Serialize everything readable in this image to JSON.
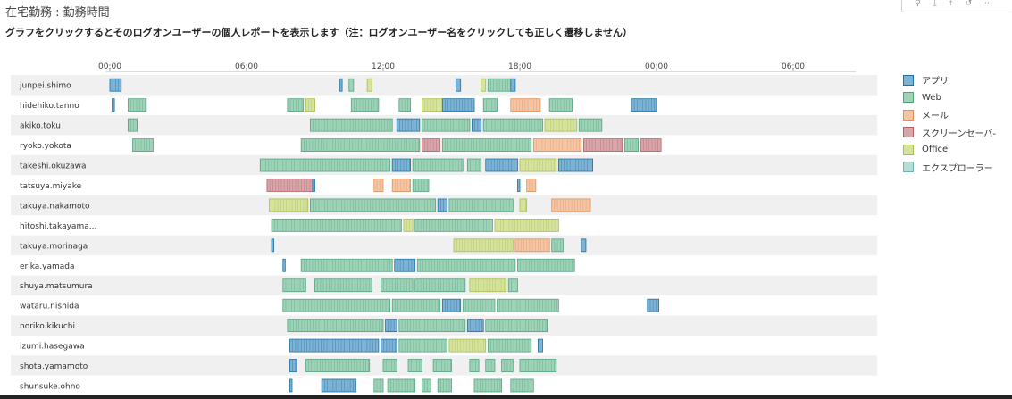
{
  "page": {
    "title": "在宅勤務 : 勤務時間",
    "subtitle": "グラフをクリックするとそのログオンユーザーの個人レポートを表示します（注：ログオンユーザー名をクリックしても正しく遷移しません）"
  },
  "toolbar": {
    "icons": [
      "search-icon",
      "download-icon",
      "pin-icon",
      "undo-icon",
      "share-icon"
    ],
    "glyphs": [
      "⚲",
      "⤓",
      "⤒",
      "↺",
      "⋯"
    ]
  },
  "colors": {
    "アプリ": {
      "fill": "#7fb3d5",
      "stroke": "#1f6f9f"
    },
    "Web": {
      "fill": "#9fd3b8",
      "stroke": "#52a27e"
    },
    "メール": {
      "fill": "#f4c6a6",
      "stroke": "#e08f56"
    },
    "スクリーンセーバー": {
      "fill": "#d7a6aa",
      "stroke": "#b36168"
    },
    "Office": {
      "fill": "#d5e39f",
      "stroke": "#a6bd4d"
    },
    "エクスプローラー": {
      "fill": "#b4ddd7",
      "stroke": "#6fb3aa"
    }
  },
  "chart_data": {
    "type": "timeline",
    "x_ticks": [
      "00:00",
      "06:00",
      "12:00",
      "18:00",
      "00:00",
      "06:00"
    ],
    "x_range_hours": [
      -0.3,
      33.0
    ],
    "legend": {
      "position": "right",
      "entries": [
        "アプリ",
        "Web",
        "メール",
        "スクリーンセーバ-",
        "Office",
        "エクスプローラー"
      ],
      "keys": [
        "アプリ",
        "Web",
        "メール",
        "スクリーンセーバー",
        "Office",
        "エクスプローラー"
      ]
    },
    "users": [
      {
        "name": "junpei.shimo",
        "segments": [
          {
            "s": 0.0,
            "e": 0.5,
            "t": "アプリ"
          },
          {
            "s": 10.1,
            "e": 10.2,
            "t": "アプリ"
          },
          {
            "s": 10.5,
            "e": 10.7,
            "t": "Web"
          },
          {
            "s": 11.3,
            "e": 11.5,
            "t": "Office"
          },
          {
            "s": 15.2,
            "e": 15.4,
            "t": "アプリ"
          },
          {
            "s": 16.3,
            "e": 16.5,
            "t": "Office"
          },
          {
            "s": 16.6,
            "e": 17.6,
            "t": "Web"
          },
          {
            "s": 17.6,
            "e": 17.8,
            "t": "アプリ"
          }
        ]
      },
      {
        "name": "hidehiko.tanno",
        "segments": [
          {
            "s": 0.1,
            "e": 0.2,
            "t": "アプリ"
          },
          {
            "s": 0.8,
            "e": 1.6,
            "t": "Web"
          },
          {
            "s": 7.8,
            "e": 8.5,
            "t": "Web"
          },
          {
            "s": 8.6,
            "e": 9.0,
            "t": "Office"
          },
          {
            "s": 10.6,
            "e": 11.8,
            "t": "Web"
          },
          {
            "s": 12.7,
            "e": 13.2,
            "t": "Web"
          },
          {
            "s": 13.7,
            "e": 14.6,
            "t": "Office"
          },
          {
            "s": 14.6,
            "e": 16.0,
            "t": "アプリ"
          },
          {
            "s": 16.4,
            "e": 17.0,
            "t": "Web"
          },
          {
            "s": 17.6,
            "e": 18.9,
            "t": "メール"
          },
          {
            "s": 19.3,
            "e": 20.3,
            "t": "Web"
          },
          {
            "s": 22.9,
            "e": 24.0,
            "t": "アプリ"
          }
        ]
      },
      {
        "name": "akiko.toku",
        "segments": [
          {
            "s": 0.8,
            "e": 1.2,
            "t": "Web"
          },
          {
            "s": 8.8,
            "e": 12.4,
            "t": "Web"
          },
          {
            "s": 12.6,
            "e": 13.6,
            "t": "アプリ"
          },
          {
            "s": 13.7,
            "e": 15.8,
            "t": "Web"
          },
          {
            "s": 15.9,
            "e": 16.3,
            "t": "アプリ"
          },
          {
            "s": 16.4,
            "e": 19.0,
            "t": "Web"
          },
          {
            "s": 19.1,
            "e": 20.5,
            "t": "Office"
          },
          {
            "s": 20.6,
            "e": 21.6,
            "t": "Web"
          }
        ]
      },
      {
        "name": "ryoko.yokota",
        "segments": [
          {
            "s": 1.0,
            "e": 1.9,
            "t": "Web"
          },
          {
            "s": 8.4,
            "e": 13.6,
            "t": "Web"
          },
          {
            "s": 13.7,
            "e": 14.5,
            "t": "スクリーンセーバー"
          },
          {
            "s": 14.6,
            "e": 18.5,
            "t": "Web"
          },
          {
            "s": 18.6,
            "e": 20.7,
            "t": "メール"
          },
          {
            "s": 20.8,
            "e": 22.5,
            "t": "スクリーンセーバー"
          },
          {
            "s": 22.6,
            "e": 23.2,
            "t": "Web"
          },
          {
            "s": 23.3,
            "e": 24.2,
            "t": "スクリーンセーバー"
          }
        ]
      },
      {
        "name": "takeshi.okuzawa",
        "segments": [
          {
            "s": 6.6,
            "e": 12.3,
            "t": "Web"
          },
          {
            "s": 12.4,
            "e": 13.2,
            "t": "アプリ"
          },
          {
            "s": 13.3,
            "e": 15.5,
            "t": "Web"
          },
          {
            "s": 15.7,
            "e": 16.3,
            "t": "Web"
          },
          {
            "s": 16.5,
            "e": 17.9,
            "t": "アプリ"
          },
          {
            "s": 18.0,
            "e": 19.6,
            "t": "Office"
          },
          {
            "s": 19.7,
            "e": 21.2,
            "t": "アプリ"
          }
        ]
      },
      {
        "name": "tatsuya.miyake",
        "segments": [
          {
            "s": 6.9,
            "e": 8.9,
            "t": "スクリーンセーバー"
          },
          {
            "s": 8.9,
            "e": 9.0,
            "t": "アプリ"
          },
          {
            "s": 11.6,
            "e": 12.0,
            "t": "メール"
          },
          {
            "s": 12.4,
            "e": 13.2,
            "t": "メール"
          },
          {
            "s": 13.3,
            "e": 14.0,
            "t": "Web"
          },
          {
            "s": 17.9,
            "e": 18.0,
            "t": "アプリ"
          },
          {
            "s": 18.3,
            "e": 18.7,
            "t": "メール"
          }
        ]
      },
      {
        "name": "takuya.nakamoto",
        "segments": [
          {
            "s": 7.0,
            "e": 8.7,
            "t": "Office"
          },
          {
            "s": 8.8,
            "e": 14.3,
            "t": "Web"
          },
          {
            "s": 14.4,
            "e": 14.8,
            "t": "アプリ"
          },
          {
            "s": 14.9,
            "e": 17.7,
            "t": "Web"
          },
          {
            "s": 18.0,
            "e": 18.3,
            "t": "Office"
          },
          {
            "s": 19.4,
            "e": 21.1,
            "t": "メール"
          }
        ]
      },
      {
        "name": "hitoshi.takayama...",
        "segments": [
          {
            "s": 7.1,
            "e": 12.8,
            "t": "Web"
          },
          {
            "s": 12.9,
            "e": 13.3,
            "t": "Office"
          },
          {
            "s": 13.4,
            "e": 16.8,
            "t": "Web"
          },
          {
            "s": 16.9,
            "e": 19.7,
            "t": "Office"
          }
        ]
      },
      {
        "name": "takuya.morinaga",
        "segments": [
          {
            "s": 7.1,
            "e": 7.2,
            "t": "アプリ"
          },
          {
            "s": 15.1,
            "e": 17.7,
            "t": "Office"
          },
          {
            "s": 17.8,
            "e": 19.3,
            "t": "メール"
          },
          {
            "s": 19.4,
            "e": 19.9,
            "t": "Web"
          },
          {
            "s": 20.7,
            "e": 20.9,
            "t": "アプリ"
          }
        ]
      },
      {
        "name": "erika.yamada",
        "segments": [
          {
            "s": 7.6,
            "e": 7.7,
            "t": "アプリ"
          },
          {
            "s": 8.4,
            "e": 12.4,
            "t": "Web"
          },
          {
            "s": 12.5,
            "e": 13.4,
            "t": "アプリ"
          },
          {
            "s": 13.5,
            "e": 17.8,
            "t": "Web"
          },
          {
            "s": 17.9,
            "e": 20.4,
            "t": "Web"
          }
        ]
      },
      {
        "name": "shuya.matsumura",
        "segments": [
          {
            "s": 7.6,
            "e": 8.6,
            "t": "Web"
          },
          {
            "s": 9.0,
            "e": 11.5,
            "t": "Web"
          },
          {
            "s": 11.9,
            "e": 13.3,
            "t": "Web"
          },
          {
            "s": 13.4,
            "e": 15.6,
            "t": "Web"
          },
          {
            "s": 15.8,
            "e": 17.4,
            "t": "Office"
          },
          {
            "s": 17.5,
            "e": 17.9,
            "t": "Web"
          }
        ]
      },
      {
        "name": "wataru.nishida",
        "segments": [
          {
            "s": 7.6,
            "e": 12.3,
            "t": "Web"
          },
          {
            "s": 12.4,
            "e": 14.5,
            "t": "Web"
          },
          {
            "s": 14.6,
            "e": 15.4,
            "t": "アプリ"
          },
          {
            "s": 15.5,
            "e": 16.9,
            "t": "Web"
          },
          {
            "s": 17.0,
            "e": 19.7,
            "t": "Web"
          },
          {
            "s": 23.6,
            "e": 24.1,
            "t": "アプリ"
          }
        ]
      },
      {
        "name": "noriko.kikuchi",
        "segments": [
          {
            "s": 7.8,
            "e": 12.0,
            "t": "Web"
          },
          {
            "s": 12.1,
            "e": 12.6,
            "t": "アプリ"
          },
          {
            "s": 12.7,
            "e": 15.6,
            "t": "Web"
          },
          {
            "s": 15.7,
            "e": 16.4,
            "t": "アプリ"
          },
          {
            "s": 16.5,
            "e": 19.2,
            "t": "Web"
          }
        ]
      },
      {
        "name": "izumi.hasegawa",
        "segments": [
          {
            "s": 7.9,
            "e": 11.8,
            "t": "アプリ"
          },
          {
            "s": 11.9,
            "e": 12.6,
            "t": "アプリ"
          },
          {
            "s": 12.7,
            "e": 14.8,
            "t": "Web"
          },
          {
            "s": 14.9,
            "e": 16.5,
            "t": "Office"
          },
          {
            "s": 16.6,
            "e": 18.5,
            "t": "Web"
          },
          {
            "s": 18.8,
            "e": 19.0,
            "t": "アプリ"
          }
        ]
      },
      {
        "name": "shota.yamamoto",
        "segments": [
          {
            "s": 7.9,
            "e": 8.2,
            "t": "アプリ"
          },
          {
            "s": 8.6,
            "e": 11.4,
            "t": "Web"
          },
          {
            "s": 12.0,
            "e": 12.6,
            "t": "Web"
          },
          {
            "s": 13.1,
            "e": 13.7,
            "t": "Web"
          },
          {
            "s": 14.2,
            "e": 15.0,
            "t": "Web"
          },
          {
            "s": 15.8,
            "e": 16.2,
            "t": "Web"
          },
          {
            "s": 16.5,
            "e": 16.9,
            "t": "Web"
          },
          {
            "s": 17.2,
            "e": 17.7,
            "t": "Web"
          },
          {
            "s": 18.0,
            "e": 19.6,
            "t": "Web"
          }
        ]
      },
      {
        "name": "shunsuke.ohno",
        "segments": [
          {
            "s": 7.9,
            "e": 8.0,
            "t": "アプリ"
          },
          {
            "s": 9.3,
            "e": 10.8,
            "t": "アプリ"
          },
          {
            "s": 11.6,
            "e": 12.0,
            "t": "Web"
          },
          {
            "s": 12.2,
            "e": 13.4,
            "t": "Web"
          },
          {
            "s": 13.7,
            "e": 14.1,
            "t": "Web"
          },
          {
            "s": 14.4,
            "e": 15.0,
            "t": "Web"
          },
          {
            "s": 16.0,
            "e": 17.2,
            "t": "Web"
          },
          {
            "s": 17.6,
            "e": 18.6,
            "t": "Web"
          }
        ]
      }
    ]
  }
}
